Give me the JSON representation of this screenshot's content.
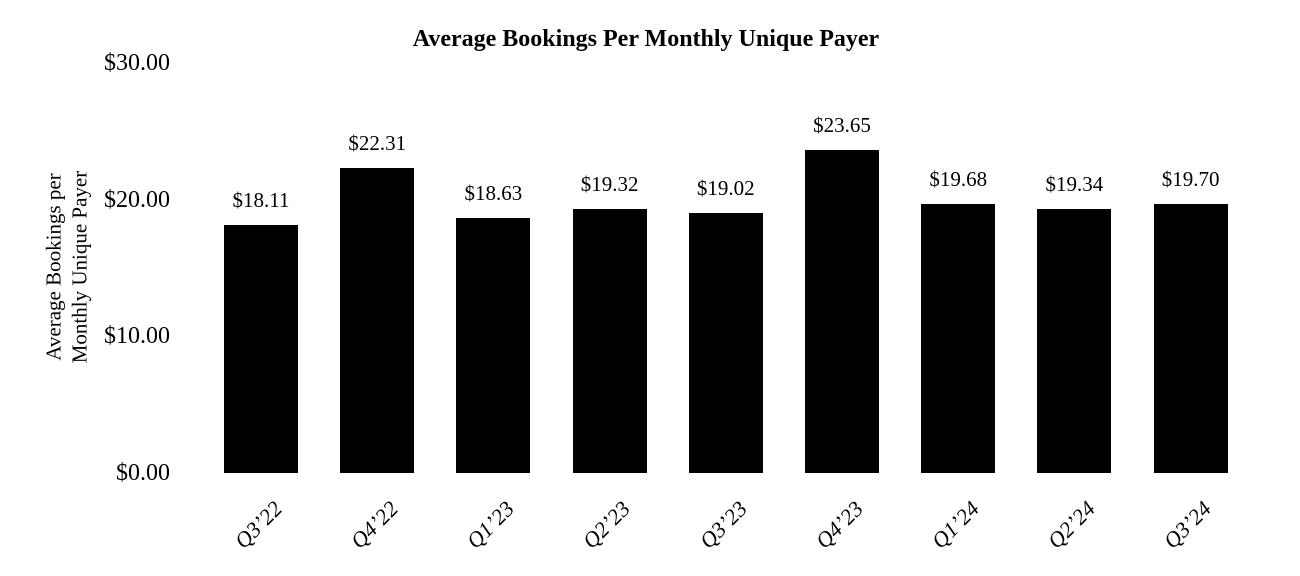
{
  "title": "Average Bookings Per Monthly Unique Payer",
  "y_axis": {
    "title_line1": "Average Bookings per",
    "title_line2": "Monthly Unique Payer",
    "tick_labels": [
      "$30.00",
      "$20.00",
      "$10.00",
      "$0.00"
    ],
    "tick_values": [
      30,
      20,
      10,
      0
    ]
  },
  "chart_data": {
    "type": "bar",
    "title": "Average Bookings Per Monthly Unique Payer",
    "categories": [
      "Q3’22",
      "Q4’22",
      "Q1’23",
      "Q2’23",
      "Q3’23",
      "Q4’23",
      "Q1’24",
      "Q2’24",
      "Q3’24"
    ],
    "values": [
      18.11,
      22.31,
      18.63,
      19.32,
      19.02,
      23.65,
      19.68,
      19.34,
      19.7
    ],
    "value_labels": [
      "$18.11",
      "$22.31",
      "$18.63",
      "$19.32",
      "$19.02",
      "$23.65",
      "$19.68",
      "$19.34",
      "$19.70"
    ],
    "xlabel": "",
    "ylabel": "Average Bookings per Monthly Unique Payer",
    "ylim": [
      0,
      30
    ],
    "yticks": [
      30,
      20,
      10,
      0
    ],
    "bar_color": "#000000",
    "text_color": "#000000",
    "background": "#ffffff",
    "grid": false,
    "legend": false
  }
}
